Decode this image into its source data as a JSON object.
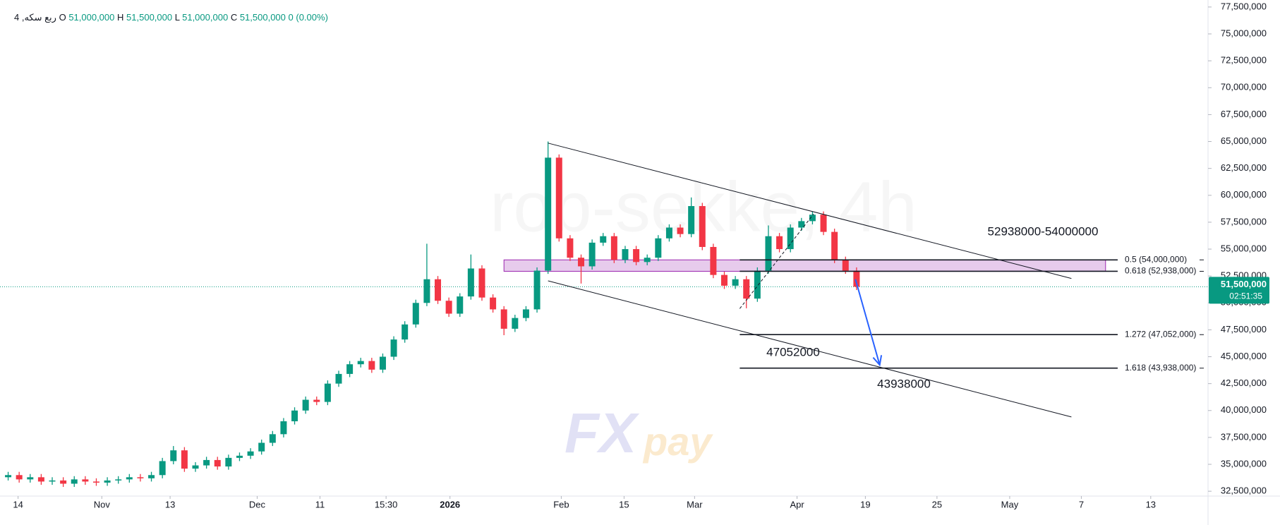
{
  "chart_data": {
    "type": "candlestick",
    "symbol": "ربع سکه, 4",
    "ohlc_legend": [
      {
        "label": "O",
        "value": "51,000,000"
      },
      {
        "label": "H",
        "value": "51,500,000"
      },
      {
        "label": "L",
        "value": "51,000,000"
      },
      {
        "label": "C",
        "value": "51,500,000"
      }
    ],
    "change": "0 (0.00%)",
    "watermark": "rob-sekke, 4h",
    "logo": [
      "FX",
      "pay"
    ],
    "up_color": "#089981",
    "down_color": "#f23645",
    "x": [
      0,
      1,
      2,
      3,
      4,
      5,
      6,
      7,
      8,
      9,
      10,
      11,
      12,
      13,
      14,
      15,
      16,
      17,
      18,
      19,
      20,
      21,
      22,
      23,
      24,
      25,
      26,
      27,
      28,
      29,
      30,
      31,
      32,
      33,
      34,
      35,
      36,
      37,
      38,
      39,
      40,
      41,
      42,
      43,
      44,
      45,
      46,
      47,
      48,
      49,
      50,
      51,
      52,
      53,
      54,
      55,
      56,
      57,
      58,
      59,
      60,
      61,
      62,
      63,
      64,
      65,
      66,
      67,
      68,
      69,
      70,
      71,
      72,
      73,
      74,
      75,
      76,
      77
    ],
    "open": [
      33800000.0,
      34000000.0,
      33600000.0,
      33800000.0,
      33400000.0,
      33500000.0,
      33200000.0,
      33600000.0,
      33400000.0,
      33300000.0,
      33500000.0,
      33600000.0,
      33800000.0,
      33700000.0,
      34000000.0,
      35300000.0,
      36300000.0,
      34600000.0,
      34900000.0,
      35400000.0,
      34800000.0,
      35600000.0,
      35800000.0,
      36200000.0,
      37000000.0,
      37800000.0,
      39000000.0,
      40000000.0,
      41000000.0,
      40800000.0,
      42500000.0,
      43400000.0,
      44300000.0,
      44600000.0,
      43800000.0,
      45000000.0,
      46600000.0,
      48000000.0,
      50000000.0,
      52200000.0,
      50200000.0,
      49000000.0,
      50600000.0,
      53200000.0,
      50500000.0,
      49400000.0,
      47600000.0,
      48600000.0,
      49400000.0,
      53000000.0,
      63500000.0,
      56000000.0,
      54200000.0,
      53400000.0,
      55600000.0,
      56200000.0,
      54000000.0,
      55000000.0,
      53800000.0,
      54200000.0,
      56000000.0,
      57000000.0,
      56400000.0,
      59000000.0,
      55200000.0,
      52600000.0,
      51600000.0,
      52200000.0,
      50400000.0,
      53000000.0,
      56200000.0,
      55000000.0,
      57000000.0,
      57600000.0,
      58200000.0,
      56600000.0,
      54000000.0,
      53000000.0
    ],
    "high": [
      34300000.0,
      34300000.0,
      34100000.0,
      34100000.0,
      33800000.0,
      33800000.0,
      33900000.0,
      33900000.0,
      33700000.0,
      33800000.0,
      33900000.0,
      34100000.0,
      34100000.0,
      34300000.0,
      35600000.0,
      36700000.0,
      36600000.0,
      35200000.0,
      35700000.0,
      35700000.0,
      35900000.0,
      36100000.0,
      36500000.0,
      37300000.0,
      38100000.0,
      39300000.0,
      40300000.0,
      41300000.0,
      41300000.0,
      42800000.0,
      43700000.0,
      44600000.0,
      44900000.0,
      44900000.0,
      45300000.0,
      46900000.0,
      48300000.0,
      50300000.0,
      55500000.0,
      52500000.0,
      50500000.0,
      50900000.0,
      54500000.0,
      53500000.0,
      50800000.0,
      49700000.0,
      48900000.0,
      49700000.0,
      53300000.0,
      65000000.0,
      63800000.0,
      56300000.0,
      54500000.0,
      55900000.0,
      56500000.0,
      56500000.0,
      55300000.0,
      55300000.0,
      54500000.0,
      56300000.0,
      57300000.0,
      57300000.0,
      59800000.0,
      59300000.0,
      55500000.0,
      52900000.0,
      52500000.0,
      52500000.0,
      53300000.0,
      57200000.0,
      56500000.0,
      57300000.0,
      57900000.0,
      58500000.0,
      58500000.0,
      56900000.0,
      54300000.0,
      53300000.0
    ],
    "low": [
      33500000.0,
      33300000.0,
      33300000.0,
      33100000.0,
      33100000.0,
      32900000.0,
      32900000.0,
      33100000.0,
      33000000.0,
      33000000.0,
      33200000.0,
      33300000.0,
      33400000.0,
      33400000.0,
      33700000.0,
      35000000.0,
      34300000.0,
      34300000.0,
      34600000.0,
      34500000.0,
      34500000.0,
      35300000.0,
      35500000.0,
      35900000.0,
      36700000.0,
      37500000.0,
      38700000.0,
      39700000.0,
      40500000.0,
      40500000.0,
      42200000.0,
      43100000.0,
      44000000.0,
      43500000.0,
      43500000.0,
      44700000.0,
      46300000.0,
      47700000.0,
      49700000.0,
      49900000.0,
      48700000.0,
      48700000.0,
      50300000.0,
      50200000.0,
      49100000.0,
      47000000.0,
      47300000.0,
      48300000.0,
      49100000.0,
      52700000.0,
      55700000.0,
      53900000.0,
      51800000.0,
      53100000.0,
      55300000.0,
      53700000.0,
      53700000.0,
      53500000.0,
      53500000.0,
      53900000.0,
      55700000.0,
      56100000.0,
      56100000.0,
      54900000.0,
      52300000.0,
      51300000.0,
      51300000.0,
      49500000.0,
      50100000.0,
      52700000.0,
      54700000.0,
      54700000.0,
      56700000.0,
      57300000.0,
      56300000.0,
      53700000.0,
      52700000.0,
      51200000.0
    ],
    "close": [
      34000000.0,
      33600000.0,
      33800000.0,
      33400000.0,
      33500000.0,
      33200000.0,
      33600000.0,
      33400000.0,
      33300000.0,
      33500000.0,
      33600000.0,
      33800000.0,
      33700000.0,
      34000000.0,
      35300000.0,
      36300000.0,
      34600000.0,
      34900000.0,
      35400000.0,
      34800000.0,
      35600000.0,
      35800000.0,
      36200000.0,
      37000000.0,
      37800000.0,
      39000000.0,
      40000000.0,
      41000000.0,
      40800000.0,
      42500000.0,
      43400000.0,
      44300000.0,
      44600000.0,
      43800000.0,
      45000000.0,
      46600000.0,
      48000000.0,
      50000000.0,
      52200000.0,
      50200000.0,
      49000000.0,
      50600000.0,
      53200000.0,
      50500000.0,
      49400000.0,
      47600000.0,
      48600000.0,
      49400000.0,
      53000000.0,
      63500000.0,
      56000000.0,
      54200000.0,
      53400000.0,
      55600000.0,
      56200000.0,
      54000000.0,
      55000000.0,
      53800000.0,
      54200000.0,
      56000000.0,
      57000000.0,
      56400000.0,
      59000000.0,
      55200000.0,
      52600000.0,
      51600000.0,
      52200000.0,
      50400000.0,
      53000000.0,
      56200000.0,
      55000000.0,
      57000000.0,
      57600000.0,
      58200000.0,
      56600000.0,
      54000000.0,
      53000000.0,
      51500000.0
    ],
    "xlim": [
      -0.74,
      108.9
    ],
    "xticks": [
      {
        "value": 0.9,
        "label": "14"
      },
      {
        "value": 8.5,
        "label": "Nov"
      },
      {
        "value": 14.7,
        "label": "13"
      },
      {
        "value": 22.6,
        "label": "Dec"
      },
      {
        "value": 28.3,
        "label": "11"
      },
      {
        "value": 34.3,
        "label": "15:30"
      },
      {
        "value": 40.1,
        "label": "2026"
      },
      {
        "value": 50.2,
        "label": "Feb"
      },
      {
        "value": 55.9,
        "label": "15"
      },
      {
        "value": 62.3,
        "label": "Mar"
      },
      {
        "value": 71.6,
        "label": "Apr"
      },
      {
        "value": 77.8,
        "label": "19"
      },
      {
        "value": 84.3,
        "label": "25"
      },
      {
        "value": 90.9,
        "label": "May"
      },
      {
        "value": 97.4,
        "label": "7"
      },
      {
        "value": 103.7,
        "label": "13"
      }
    ],
    "ylim": [
      32050000,
      78150000
    ],
    "yticks": [
      {
        "value": 32500000,
        "label": "32,500,000"
      },
      {
        "value": 35000000,
        "label": "35,000,000"
      },
      {
        "value": 37500000,
        "label": "37,500,000"
      },
      {
        "value": 40000000,
        "label": "40,000,000"
      },
      {
        "value": 42500000,
        "label": "42,500,000"
      },
      {
        "value": 45000000,
        "label": "45,000,000"
      },
      {
        "value": 47500000,
        "label": "47,500,000"
      },
      {
        "value": 50000000,
        "label": "50,000,000"
      },
      {
        "value": 52500000,
        "label": "52,500,000"
      },
      {
        "value": 55000000,
        "label": "55,000,000"
      },
      {
        "value": 57500000,
        "label": "57,500,000"
      },
      {
        "value": 60000000,
        "label": "60,000,000"
      },
      {
        "value": 62500000,
        "label": "62,500,000"
      },
      {
        "value": 65000000,
        "label": "65,000,000"
      },
      {
        "value": 67500000,
        "label": "67,500,000"
      },
      {
        "value": 70000000,
        "label": "70,000,000"
      },
      {
        "value": 72500000,
        "label": "72,500,000"
      },
      {
        "value": 75000000,
        "label": "75,000,000"
      },
      {
        "value": 77500000,
        "label": "77,500,000"
      }
    ],
    "grid": false,
    "last_price": {
      "value": 51500000,
      "label": "51,500,000"
    },
    "countdown": "02:51:35",
    "zone": {
      "x": [
        45,
        99.6
      ],
      "y": [
        52938000,
        54000000
      ],
      "color": "#e1bee7"
    },
    "trendlines": [
      {
        "x": [
          49,
          96.5
        ],
        "y": [
          64850000,
          52270000
        ]
      },
      {
        "x": [
          49,
          96.5
        ],
        "y": [
          52050000,
          39400000
        ]
      },
      {
        "x": [
          66.4,
          73.1
        ],
        "y": [
          49470000,
          58260000
        ]
      }
    ],
    "arrow": {
      "x": [
        76.9,
        79.1
      ],
      "y": [
        52200000,
        44240000
      ],
      "color": "#2962ff"
    },
    "fib_levels": [
      {
        "value": 54000000,
        "label": "0.5 (54,000,000)"
      },
      {
        "value": 52938000,
        "label": "0.618 (52,938,000)"
      },
      {
        "value": 47052000,
        "label": "1.272 (47,052,000)"
      },
      {
        "value": 43938000,
        "label": "1.618 (43,938,000)"
      }
    ],
    "fib_x": [
      66.4,
      100.7
    ],
    "annotations": [
      "52938000-54000000",
      "47052000",
      "43938000"
    ]
  }
}
